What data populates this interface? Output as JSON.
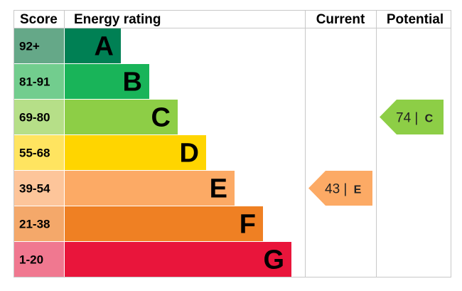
{
  "chart_data": {
    "type": "bar",
    "headers": {
      "score": "Score",
      "rating": "Energy rating",
      "current": "Current",
      "potential": "Potential"
    },
    "bands": [
      {
        "score": "92+",
        "letter": "A",
        "color": "#008054",
        "score_color": "#65a888",
        "length": 1
      },
      {
        "score": "81-91",
        "letter": "B",
        "color": "#19b459",
        "score_color": "#72cd8e",
        "length": 2
      },
      {
        "score": "69-80",
        "letter": "C",
        "color": "#8dce46",
        "score_color": "#b6df88",
        "length": 3
      },
      {
        "score": "55-68",
        "letter": "D",
        "color": "#ffd500",
        "score_color": "#ffe460",
        "length": 4
      },
      {
        "score": "39-54",
        "letter": "E",
        "color": "#fcaa65",
        "score_color": "#fdc59a",
        "length": 5
      },
      {
        "score": "21-38",
        "letter": "F",
        "color": "#ef8023",
        "score_color": "#f4a86a",
        "length": 6
      },
      {
        "score": "1-20",
        "letter": "G",
        "color": "#e9153b",
        "score_color": "#f07890",
        "length": 7
      }
    ],
    "current": {
      "value": 43,
      "band": "E",
      "color": "#fcaa65"
    },
    "potential": {
      "value": 74,
      "band": "C",
      "color": "#8dce46"
    }
  }
}
